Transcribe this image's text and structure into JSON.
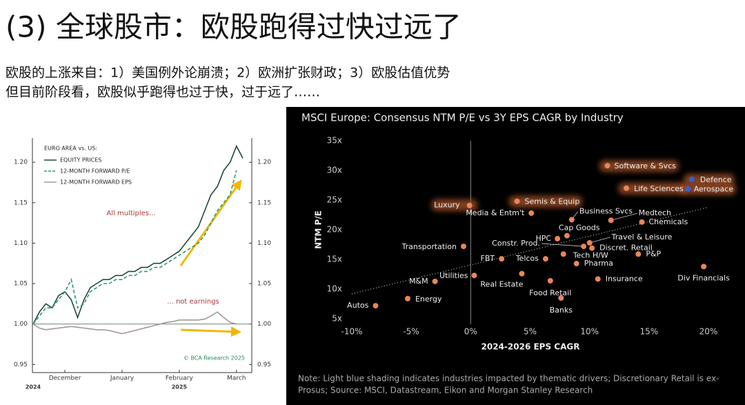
{
  "title": "(3) 全球股市：欧股跑得过快过远了",
  "subtitle": [
    "欧股的上涨来自：1）美国例外论崩溃；2）欧洲扩张财政；3）欧股估值优势",
    "但目前阶段看，欧股似乎跑得也过于快，过于远了……"
  ],
  "chart_data": [
    {
      "type": "line",
      "legend_title": "EURO AREA vs. US:",
      "categories": [
        null,
        null,
        null,
        null,
        null,
        "December",
        null,
        null,
        null,
        null,
        null,
        null,
        null,
        null,
        "January",
        null,
        null,
        null,
        null,
        null,
        null,
        null,
        null,
        "February",
        null,
        null,
        null,
        null,
        null,
        null,
        null,
        null,
        "March",
        null
      ],
      "years": [
        "2024",
        null,
        null,
        null,
        null,
        null,
        null,
        null,
        null,
        null,
        null,
        null,
        null,
        null,
        null,
        null,
        null,
        null,
        null,
        null,
        null,
        null,
        null,
        "2025",
        null,
        null,
        null,
        null,
        null,
        null,
        null,
        null,
        null,
        null
      ],
      "series": [
        {
          "name": "EQUITY PRICES",
          "color": "#1f4a36",
          "dash": false,
          "values": [
            1.0,
            1.015,
            1.025,
            1.02,
            1.035,
            1.04,
            1.03,
            1.008,
            1.03,
            1.045,
            1.05,
            1.055,
            1.055,
            1.06,
            1.06,
            1.065,
            1.065,
            1.07,
            1.07,
            1.075,
            1.075,
            1.08,
            1.085,
            1.09,
            1.1,
            1.11,
            1.12,
            1.14,
            1.16,
            1.17,
            1.19,
            1.2,
            1.22,
            1.205
          ]
        },
        {
          "name": "12-MONTH FORWARD P/E",
          "color": "#2a9a6a",
          "dash": true,
          "values": [
            1.0,
            1.01,
            1.02,
            1.02,
            1.03,
            1.04,
            1.055,
            1.02,
            1.025,
            1.04,
            1.045,
            1.05,
            1.05,
            1.055,
            1.055,
            1.06,
            1.06,
            1.065,
            1.065,
            1.07,
            1.07,
            1.075,
            1.08,
            1.085,
            1.09,
            1.095,
            1.1,
            1.11,
            1.125,
            1.14,
            1.15,
            1.16,
            1.19,
            null
          ]
        },
        {
          "name": "12-MONTH FORWARD EPS",
          "color": "#a09a96",
          "dash": false,
          "values": [
            1.0,
            0.995,
            0.993,
            0.994,
            0.995,
            0.996,
            0.997,
            0.996,
            0.995,
            0.994,
            0.993,
            0.993,
            0.992,
            0.99,
            0.988,
            0.99,
            0.992,
            0.994,
            0.996,
            0.998,
            1.0,
            1.002,
            1.003,
            1.005,
            1.005,
            1.005,
            1.005,
            1.006,
            1.01,
            1.015,
            1.008,
            1.002,
            1.0,
            null
          ]
        }
      ],
      "ylim": [
        0.94,
        1.23
      ],
      "yticks": [
        {
          "value": 0.95,
          "label": "0.95"
        },
        {
          "value": 1.0,
          "label": "1.00"
        },
        {
          "value": 1.05,
          "label": "1.05"
        },
        {
          "value": 1.1,
          "label": "1.10"
        },
        {
          "value": 1.15,
          "label": "1.15"
        },
        {
          "value": 1.2,
          "label": "1.20"
        }
      ],
      "reference_line": 1,
      "annotations": [
        "All multiples...",
        "... not earnings",
        "© BCA Research 2025"
      ]
    },
    {
      "type": "scatter",
      "title": "MSCI Europe: Consensus NTM P/E vs 3Y EPS CAGR by Industry",
      "xlabel": "2024-2026 EPS CAGR",
      "ylabel": "NTM P/E",
      "labels": [
        "Software & Svcs",
        "Defence",
        "Aerospace",
        "Life Sciences",
        "Semis & Equip",
        "Luxury",
        "Media & Entm't",
        "Business Svcs",
        "Medtech",
        "Chemicals",
        "Cap Goods",
        "HPC",
        "Travel & Leisure",
        "Constr. Prod.",
        "Discret. Retail",
        "Transportation",
        "Tech H/W",
        "P&P",
        "FBT",
        "Telcos",
        "Pharma",
        "Div Financials",
        "Utilities",
        "Real Estate",
        "M&M",
        "Insurance",
        "Food Retail",
        "Energy",
        "Banks",
        "Autos"
      ],
      "x": [
        11.5,
        18.6,
        18.3,
        13.1,
        3.9,
        -0.1,
        5.1,
        8.5,
        11.8,
        14.4,
        8.1,
        7.3,
        10.0,
        9.5,
        10.2,
        -0.6,
        7.8,
        14.1,
        2.6,
        6.3,
        8.9,
        19.6,
        0.3,
        4.3,
        -3.0,
        10.7,
        6.7,
        -5.3,
        7.6,
        -8.0
      ],
      "y": [
        30.8,
        28.5,
        26.9,
        27.0,
        24.8,
        24.1,
        22.8,
        21.7,
        21.6,
        21.3,
        19.0,
        18.5,
        17.8,
        17.2,
        16.9,
        17.2,
        15.9,
        15.9,
        15.1,
        15.1,
        14.3,
        13.8,
        12.3,
        12.6,
        11.3,
        11.7,
        11.4,
        8.4,
        8.5,
        7.2
      ],
      "colors": [
        "#e8865a",
        "#3b5fcf",
        "#3b5fcf",
        "#e8865a",
        "#e8865a",
        "#e8865a",
        "#e8865a",
        "#e8865a",
        "#e8865a",
        "#e8865a",
        "#e8865a",
        "#e8865a",
        "#e8865a",
        "#e8865a",
        "#e8865a",
        "#e8865a",
        "#e8865a",
        "#e8865a",
        "#e8865a",
        "#e8865a",
        "#e8865a",
        "#e8865a",
        "#e8865a",
        "#e8865a",
        "#e8865a",
        "#e8865a",
        "#e8865a",
        "#e8865a",
        "#e8865a",
        "#e8865a"
      ],
      "highlighted": [
        true,
        true,
        true,
        true,
        true,
        true,
        false,
        false,
        false,
        false,
        false,
        false,
        false,
        false,
        false,
        false,
        false,
        false,
        false,
        false,
        false,
        false,
        false,
        false,
        false,
        false,
        false,
        false,
        false,
        false
      ],
      "trendline": {
        "x": [
          -10,
          20
        ],
        "y": [
          9.2,
          23.8
        ]
      },
      "xlim": [
        -10,
        20
      ],
      "ylim": [
        5,
        35
      ],
      "xticks": [
        {
          "value": -10,
          "label": "-10%"
        },
        {
          "value": -5,
          "label": "-5%"
        },
        {
          "value": 0,
          "label": "0%"
        },
        {
          "value": 5,
          "label": "5%"
        },
        {
          "value": 10,
          "label": "10%"
        },
        {
          "value": 15,
          "label": "15%"
        },
        {
          "value": 20,
          "label": "20%"
        }
      ],
      "yticks": [
        {
          "value": 5,
          "label": "5x"
        },
        {
          "value": 10,
          "label": "10x"
        },
        {
          "value": 15,
          "label": "15x"
        },
        {
          "value": 20,
          "label": "20x"
        },
        {
          "value": 25,
          "label": "25x"
        },
        {
          "value": 30,
          "label": "30x"
        },
        {
          "value": 35,
          "label": "35x"
        }
      ],
      "note": [
        "Note: Light blue shading indicates industries impacted by thematic drivers; Discretionary Retail is ex-",
        "Prosus; Source: MSCI, Datastream, Eikon and Morgan Stanley Research"
      ]
    }
  ]
}
